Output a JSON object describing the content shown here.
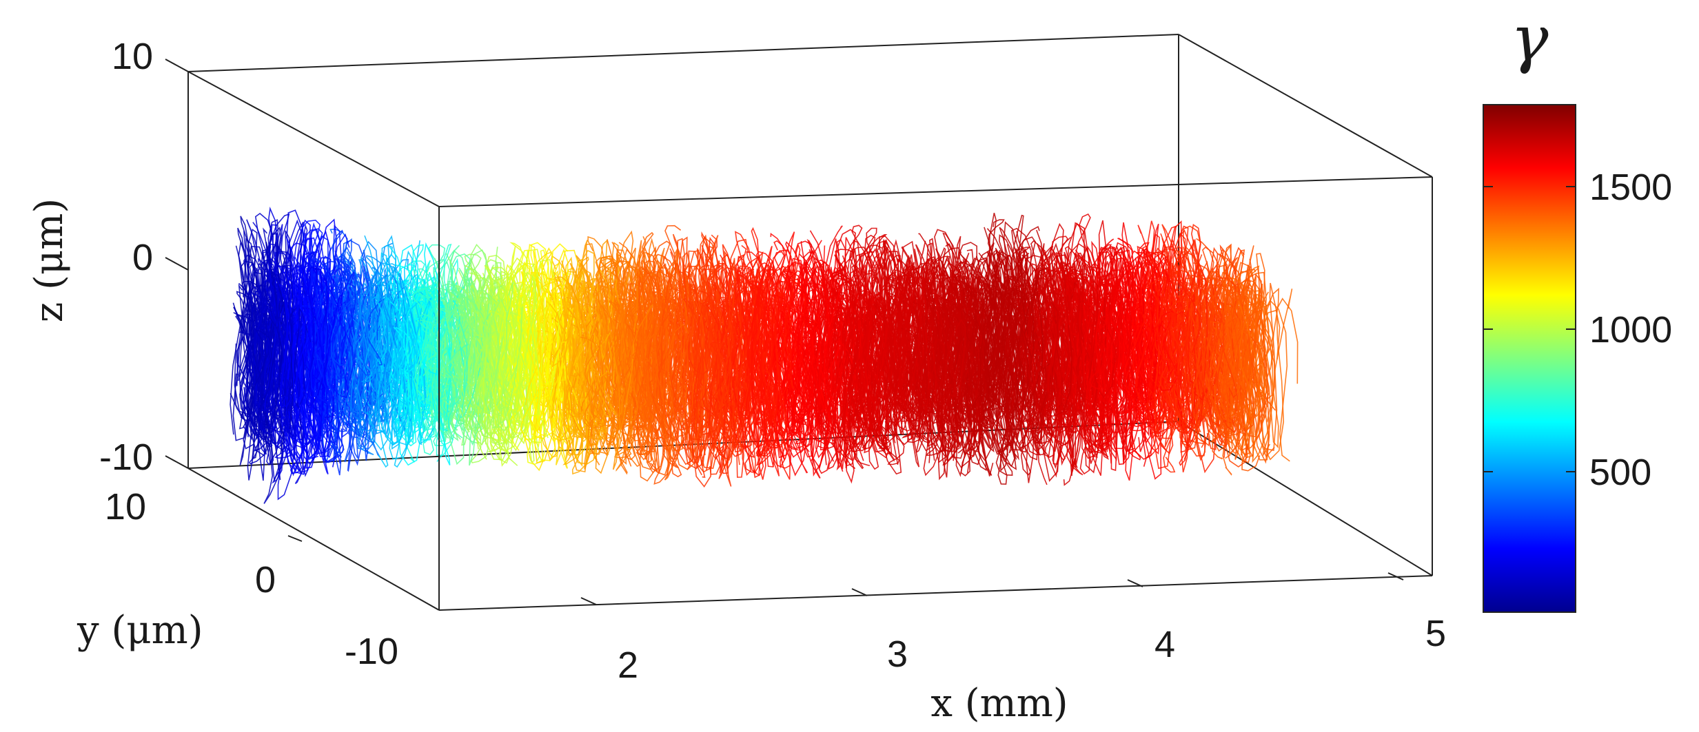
{
  "chart_data": {
    "type": "line",
    "subtype": "3d-trajectories",
    "title": "",
    "xlabel": "x (mm)",
    "ylabel": "y (μm)",
    "zlabel": "z (μm)",
    "colorbar_label": "γ",
    "x_ticks": [
      "2",
      "3",
      "4",
      "5"
    ],
    "y_ticks": [
      "10",
      "0",
      "-10"
    ],
    "z_ticks": [
      "10",
      "0",
      "-10"
    ],
    "colorbar_ticks": [
      "1500",
      "1000",
      "500"
    ],
    "xlim": [
      1.1,
      5.1
    ],
    "ylim": [
      -10,
      10
    ],
    "zlim": [
      -10,
      10
    ],
    "color_range": [
      0,
      1780
    ],
    "colormap": "jet",
    "series": [
      {
        "x": [
          1.2,
          1.5,
          2.0,
          2.5,
          3.0,
          3.5,
          4.0,
          4.5,
          5.0
        ],
        "gamma": [
          80,
          280,
          900,
          1320,
          1500,
          1620,
          1680,
          1560,
          1350
        ],
        "z": [
          -4.2,
          -4.0,
          -4.2,
          -4.3,
          -4.4,
          -4.3,
          -4.0,
          -3.8,
          -4.5
        ],
        "spread": [
          5.5,
          4.2,
          3.5,
          4.2,
          4.5,
          4.2,
          4.4,
          4.4,
          3.7
        ]
      }
    ],
    "grid": false,
    "colors": {
      "axis": "#222222"
    }
  }
}
